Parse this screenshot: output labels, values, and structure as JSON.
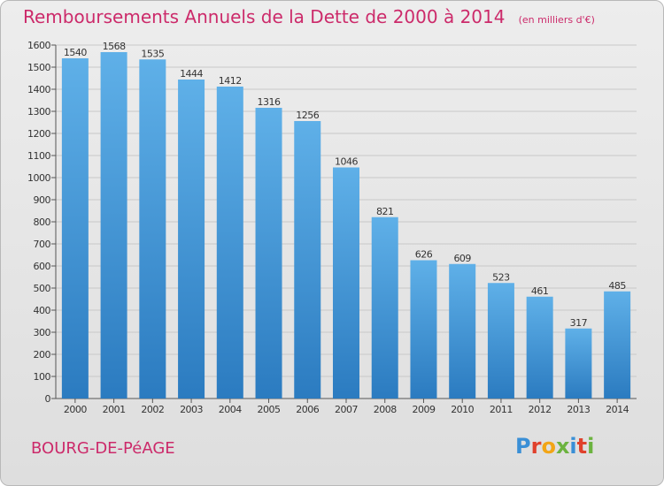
{
  "chart_data": {
    "type": "bar",
    "title": "Remboursements Annuels de la Dette de 2000 à 2014",
    "subtitle": "(en milliers d'€)",
    "categories": [
      "2000",
      "2001",
      "2002",
      "2003",
      "2004",
      "2005",
      "2006",
      "2007",
      "2008",
      "2009",
      "2010",
      "2011",
      "2012",
      "2013",
      "2014"
    ],
    "values": [
      1540,
      1568,
      1535,
      1444,
      1412,
      1316,
      1256,
      1046,
      821,
      626,
      609,
      523,
      461,
      317,
      485
    ],
    "ylim": [
      0,
      1600
    ],
    "yticks": [
      0,
      100,
      200,
      300,
      400,
      500,
      600,
      700,
      800,
      900,
      1000,
      1100,
      1200,
      1300,
      1400,
      1500,
      1600
    ],
    "grid": true,
    "xlabel": "",
    "ylabel": ""
  },
  "footer": {
    "city": "BOURG-DE-PéAGE",
    "logo": "Proxiti"
  },
  "colors": {
    "accent": "#cc2a6a",
    "bar_top": "#5fb0e8",
    "bar_bottom": "#2b7bc0"
  }
}
